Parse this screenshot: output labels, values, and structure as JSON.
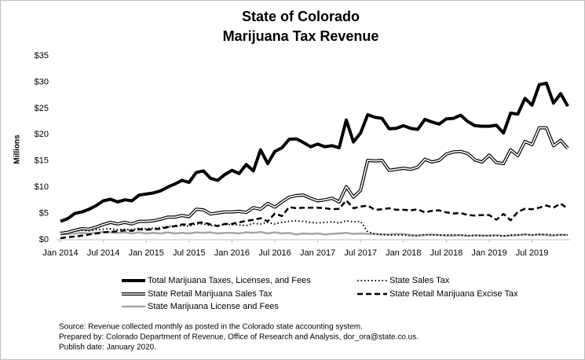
{
  "chart_data": {
    "type": "line",
    "title": "State of Colorado",
    "subtitle": "Marijuana Tax Revenue",
    "y_label": "Millions",
    "categories": [
      "Jan 2014",
      null,
      null,
      null,
      null,
      null,
      "Jul 2014",
      null,
      null,
      null,
      null,
      null,
      "Jan 2015",
      null,
      null,
      null,
      null,
      null,
      "Jul 2015",
      null,
      null,
      null,
      null,
      null,
      "Jan 2016",
      null,
      null,
      null,
      null,
      null,
      "Jul 2016",
      null,
      null,
      null,
      null,
      null,
      "Jan 2017",
      null,
      null,
      null,
      null,
      null,
      "Jul 2017",
      null,
      null,
      null,
      null,
      null,
      "Jan 2018",
      null,
      null,
      null,
      null,
      null,
      "Jul 2018",
      null,
      null,
      null,
      null,
      null,
      "Jan 2019",
      null,
      null,
      null,
      null,
      null,
      "Jul 2019",
      null,
      null,
      null,
      null,
      null
    ],
    "ylim": [
      0,
      35
    ],
    "yticks": [
      {
        "value": 0,
        "label": "$0"
      },
      {
        "value": 5,
        "label": "$5"
      },
      {
        "value": 10,
        "label": "$10"
      },
      {
        "value": 15,
        "label": "$15"
      },
      {
        "value": 20,
        "label": "$20"
      },
      {
        "value": 25,
        "label": "$25"
      },
      {
        "value": 30,
        "label": "$30"
      },
      {
        "value": 35,
        "label": "$35"
      }
    ],
    "grid": false,
    "series": [
      {
        "name": "Total Marijuana Taxes, Licenses, and Fees",
        "color": "#000000",
        "style": "thick",
        "values": [
          3.5,
          4.0,
          5.0,
          5.3,
          5.8,
          6.5,
          7.4,
          7.7,
          7.2,
          7.6,
          7.4,
          8.5,
          8.7,
          8.9,
          9.3,
          10.0,
          10.6,
          11.3,
          10.9,
          12.8,
          13.1,
          11.7,
          11.3,
          12.4,
          13.2,
          12.6,
          14.3,
          13.1,
          17.1,
          14.5,
          16.8,
          17.5,
          19.1,
          19.2,
          18.5,
          17.7,
          18.2,
          17.7,
          17.9,
          17.5,
          22.8,
          18.6,
          20.3,
          23.8,
          23.3,
          23.1,
          21.1,
          21.2,
          21.7,
          21.2,
          21.0,
          22.9,
          22.4,
          22.0,
          23.0,
          23.1,
          23.7,
          22.5,
          21.7,
          21.6,
          21.6,
          21.8,
          20.3,
          24.1,
          23.9,
          26.9,
          25.6,
          29.5,
          29.8,
          26.0,
          27.8,
          25.4
        ]
      },
      {
        "name": "State Sales Tax",
        "color": "#000000",
        "style": "dotted",
        "values": [
          1.4,
          1.5,
          1.7,
          1.8,
          1.7,
          1.9,
          2.0,
          2.1,
          1.9,
          2.0,
          1.9,
          2.2,
          2.1,
          2.2,
          2.3,
          2.5,
          2.5,
          2.7,
          2.6,
          3.0,
          3.0,
          2.7,
          2.7,
          2.9,
          2.9,
          2.8,
          2.7,
          3.1,
          3.0,
          3.3,
          3.0,
          3.3,
          3.5,
          3.6,
          3.5,
          3.3,
          3.2,
          3.3,
          3.4,
          3.2,
          3.6,
          3.4,
          3.5,
          1.5,
          1.1,
          1.0,
          0.9,
          0.9,
          0.9,
          0.8,
          0.8,
          1.0,
          0.9,
          0.9,
          0.9,
          0.9,
          0.9,
          0.8,
          0.8,
          0.8,
          0.8,
          0.8,
          0.7,
          0.9,
          0.9,
          1.0,
          0.9,
          1.0,
          1.0,
          0.9,
          0.9,
          0.9
        ]
      },
      {
        "name": "State Retail Marijuana Sales Tax",
        "color": "#000000",
        "style": "double",
        "values": [
          1.2,
          1.4,
          1.8,
          2.1,
          2.0,
          2.4,
          2.9,
          3.3,
          3.0,
          3.3,
          3.0,
          3.5,
          3.5,
          3.6,
          3.9,
          4.3,
          4.3,
          4.6,
          4.4,
          5.8,
          5.7,
          4.9,
          5.1,
          5.3,
          5.3,
          5.4,
          5.2,
          6.1,
          5.8,
          6.9,
          6.2,
          7.2,
          8.1,
          8.4,
          8.5,
          7.9,
          7.4,
          7.6,
          7.9,
          7.2,
          10.1,
          8.1,
          9.4,
          15.1,
          15.0,
          15.1,
          13.2,
          13.4,
          13.6,
          13.4,
          13.8,
          15.3,
          14.8,
          15.1,
          16.3,
          16.7,
          16.8,
          16.4,
          15.2,
          14.8,
          16.1,
          14.7,
          14.5,
          17.1,
          16.0,
          18.7,
          18.1,
          21.3,
          21.3,
          17.9,
          18.9,
          17.4
        ]
      },
      {
        "name": "State Retail Marijuana Excise Tax",
        "color": "#000000",
        "style": "dashed",
        "values": [
          0.3,
          0.5,
          0.6,
          0.8,
          1.0,
          1.2,
          1.4,
          1.5,
          1.6,
          1.8,
          1.7,
          2.0,
          1.9,
          2.0,
          2.1,
          2.4,
          2.6,
          2.9,
          2.9,
          3.2,
          3.3,
          2.9,
          2.6,
          3.0,
          3.0,
          3.3,
          3.6,
          3.8,
          4.1,
          3.5,
          5.0,
          4.5,
          6.2,
          6.0,
          6.1,
          6.1,
          6.1,
          6.0,
          5.8,
          5.9,
          7.5,
          6.0,
          6.3,
          6.5,
          5.7,
          5.8,
          6.0,
          5.7,
          5.7,
          5.6,
          5.8,
          5.2,
          5.5,
          5.6,
          5.2,
          5.0,
          5.1,
          4.7,
          4.6,
          4.7,
          4.7,
          3.8,
          4.9,
          3.7,
          5.3,
          5.9,
          5.8,
          6.1,
          6.5,
          6.1,
          6.9,
          5.9
        ]
      },
      {
        "name": "State Marijuana License and Fees",
        "color": "#a6a6a6",
        "style": "solid",
        "values": [
          1.0,
          1.1,
          1.2,
          1.3,
          1.2,
          1.3,
          1.5,
          1.4,
          1.3,
          1.4,
          1.2,
          1.4,
          1.2,
          1.3,
          1.2,
          1.4,
          1.2,
          1.3,
          1.2,
          1.4,
          1.3,
          1.4,
          1.2,
          1.3,
          1.3,
          1.2,
          1.4,
          1.3,
          1.5,
          1.2,
          1.4,
          1.2,
          1.3,
          1.0,
          1.2,
          1.1,
          1.2,
          1.0,
          1.1,
          1.2,
          1.3,
          1.1,
          1.2,
          1.1,
          1.1,
          1.0,
          1.0,
          1.1,
          1.1,
          0.9,
          0.8,
          0.9,
          1.0,
          0.9,
          0.8,
          0.8,
          0.9,
          0.7,
          0.9,
          0.8,
          0.8,
          0.9,
          0.7,
          0.8,
          0.9,
          1.0,
          0.9,
          1.0,
          0.9,
          0.8,
          1.0,
          0.9
        ]
      }
    ],
    "notes": [
      "Source: Revenue collected monthly as posted in the Colorado state accounting system.",
      "Prepared by: Colorado Department of Revenue, Office of Research and Analysis, dor_ora@state.co.us.",
      "Publish date: January 2020."
    ]
  }
}
